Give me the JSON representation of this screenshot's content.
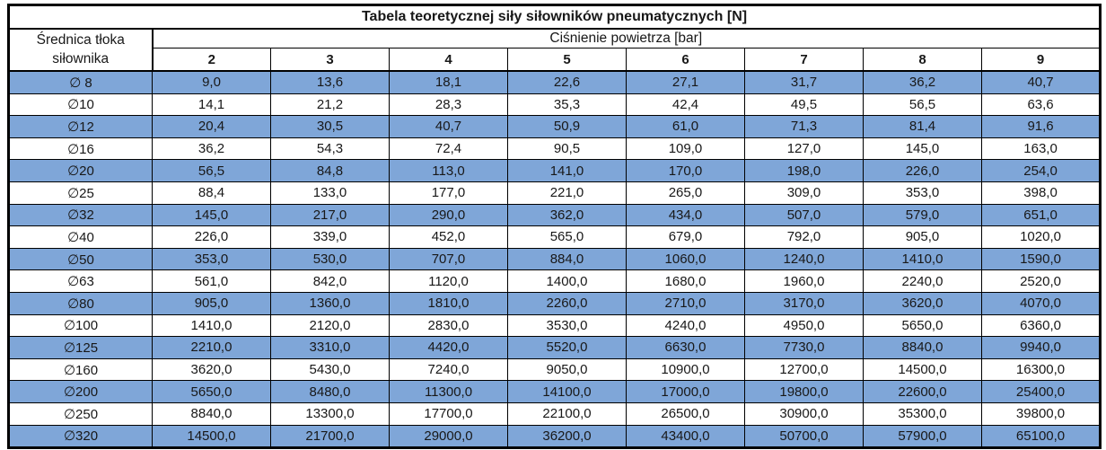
{
  "table": {
    "title": "Tabela teoretycznej siły siłowników pneumatycznych [N]",
    "row_header": "Średnica tłoka\nsiłownika",
    "col_group_header": "Ciśnienie powietrza [bar]",
    "pressures": [
      "2",
      "3",
      "4",
      "5",
      "6",
      "7",
      "8",
      "9"
    ],
    "rows": [
      {
        "diameter": "∅ 8",
        "values": [
          "9,0",
          "13,6",
          "18,1",
          "22,6",
          "27,1",
          "31,7",
          "36,2",
          "40,7"
        ]
      },
      {
        "diameter": "∅10",
        "values": [
          "14,1",
          "21,2",
          "28,3",
          "35,3",
          "42,4",
          "49,5",
          "56,5",
          "63,6"
        ]
      },
      {
        "diameter": "∅12",
        "values": [
          "20,4",
          "30,5",
          "40,7",
          "50,9",
          "61,0",
          "71,3",
          "81,4",
          "91,6"
        ]
      },
      {
        "diameter": "∅16",
        "values": [
          "36,2",
          "54,3",
          "72,4",
          "90,5",
          "109,0",
          "127,0",
          "145,0",
          "163,0"
        ]
      },
      {
        "diameter": "∅20",
        "values": [
          "56,5",
          "84,8",
          "113,0",
          "141,0",
          "170,0",
          "198,0",
          "226,0",
          "254,0"
        ]
      },
      {
        "diameter": "∅25",
        "values": [
          "88,4",
          "133,0",
          "177,0",
          "221,0",
          "265,0",
          "309,0",
          "353,0",
          "398,0"
        ]
      },
      {
        "diameter": "∅32",
        "values": [
          "145,0",
          "217,0",
          "290,0",
          "362,0",
          "434,0",
          "507,0",
          "579,0",
          "651,0"
        ]
      },
      {
        "diameter": "∅40",
        "values": [
          "226,0",
          "339,0",
          "452,0",
          "565,0",
          "679,0",
          "792,0",
          "905,0",
          "1020,0"
        ]
      },
      {
        "diameter": "∅50",
        "values": [
          "353,0",
          "530,0",
          "707,0",
          "884,0",
          "1060,0",
          "1240,0",
          "1410,0",
          "1590,0"
        ]
      },
      {
        "diameter": "∅63",
        "values": [
          "561,0",
          "842,0",
          "1120,0",
          "1400,0",
          "1680,0",
          "1960,0",
          "2240,0",
          "2520,0"
        ]
      },
      {
        "diameter": "∅80",
        "values": [
          "905,0",
          "1360,0",
          "1810,0",
          "2260,0",
          "2710,0",
          "3170,0",
          "3620,0",
          "4070,0"
        ]
      },
      {
        "diameter": "∅100",
        "values": [
          "1410,0",
          "2120,0",
          "2830,0",
          "3530,0",
          "4240,0",
          "4950,0",
          "5650,0",
          "6360,0"
        ]
      },
      {
        "diameter": "∅125",
        "values": [
          "2210,0",
          "3310,0",
          "4420,0",
          "5520,0",
          "6630,0",
          "7730,0",
          "8840,0",
          "9940,0"
        ]
      },
      {
        "diameter": "∅160",
        "values": [
          "3620,0",
          "5430,0",
          "7240,0",
          "9050,0",
          "10900,0",
          "12700,0",
          "14500,0",
          "16300,0"
        ]
      },
      {
        "diameter": "∅200",
        "values": [
          "5650,0",
          "8480,0",
          "11300,0",
          "14100,0",
          "17000,0",
          "19800,0",
          "22600,0",
          "25400,0"
        ]
      },
      {
        "diameter": "∅250",
        "values": [
          "8840,0",
          "13300,0",
          "17700,0",
          "22100,0",
          "26500,0",
          "30900,0",
          "35300,0",
          "39800,0"
        ]
      },
      {
        "diameter": "∅320",
        "values": [
          "14500,0",
          "21700,0",
          "29000,0",
          "36200,0",
          "43400,0",
          "50700,0",
          "57900,0",
          "65100,0"
        ]
      }
    ]
  },
  "colors": {
    "row_highlight": "#7fa6d8",
    "border": "#000000",
    "background": "#ffffff",
    "text": "#181818"
  }
}
